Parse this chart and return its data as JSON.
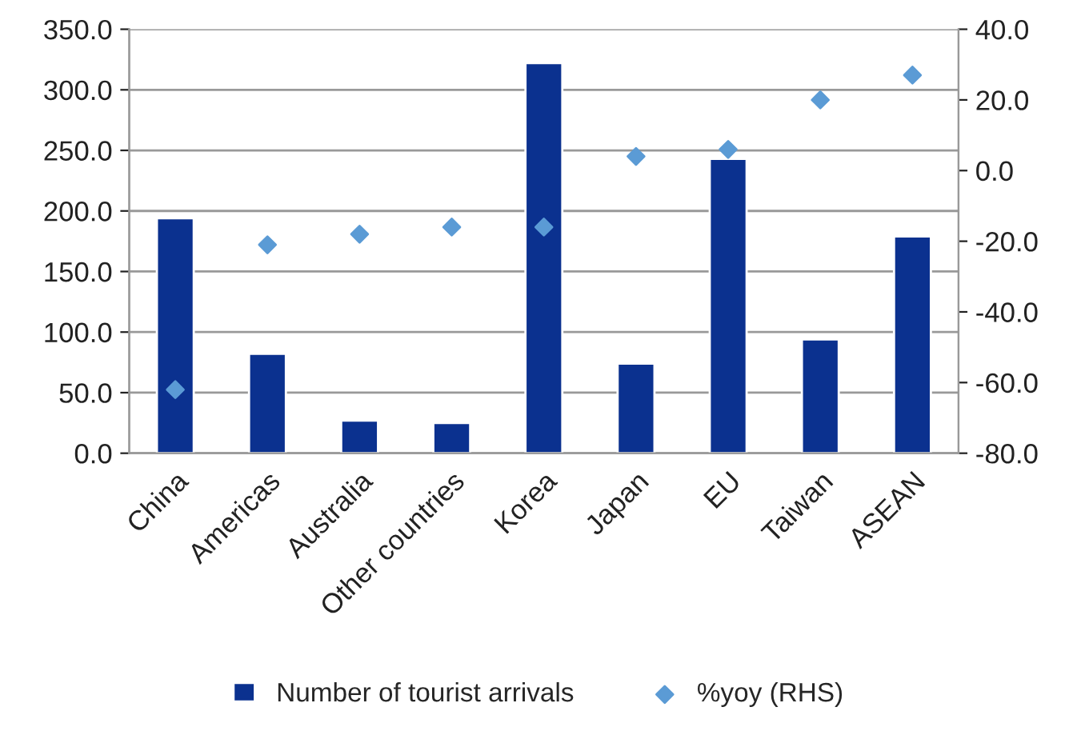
{
  "chart_data": {
    "type": "bar",
    "categories": [
      "China",
      "Americas",
      "Australia",
      "Other countries",
      "Korea",
      "Japan",
      "EU",
      "Taiwan",
      "ASEAN"
    ],
    "series": [
      {
        "name": "Number of tourist arrivals",
        "color": "#0b318f",
        "values": [
          194,
          82,
          27,
          25,
          322,
          74,
          243,
          94,
          179
        ]
      },
      {
        "name": "%yoy (RHS)",
        "type": "scatter",
        "axis": "y2",
        "color": "#5b9bd5",
        "marker": "diamond",
        "values": [
          -62,
          -21,
          -18,
          -16,
          -16,
          4,
          6,
          20,
          27
        ]
      }
    ],
    "ylim": [
      0,
      350
    ],
    "yticks": [
      {
        "value": 0,
        "label": "0.0"
      },
      {
        "value": 50,
        "label": "50.0"
      },
      {
        "value": 100,
        "label": "100.0"
      },
      {
        "value": 150,
        "label": "150.0"
      },
      {
        "value": 200,
        "label": "200.0"
      },
      {
        "value": 250,
        "label": "250.0"
      },
      {
        "value": 300,
        "label": "300.0"
      },
      {
        "value": 350,
        "label": "350.0"
      }
    ],
    "y2lim": [
      -80,
      40
    ],
    "y2ticks": [
      {
        "value": -80,
        "label": "-80.0"
      },
      {
        "value": -60,
        "label": "-60.0"
      },
      {
        "value": -40,
        "label": "-40.0"
      },
      {
        "value": -20,
        "label": "-20.0"
      },
      {
        "value": 0,
        "label": "0.0"
      },
      {
        "value": 20,
        "label": "20.0"
      },
      {
        "value": 40,
        "label": "40.0"
      }
    ],
    "grid": "y",
    "legend": "bottom"
  }
}
